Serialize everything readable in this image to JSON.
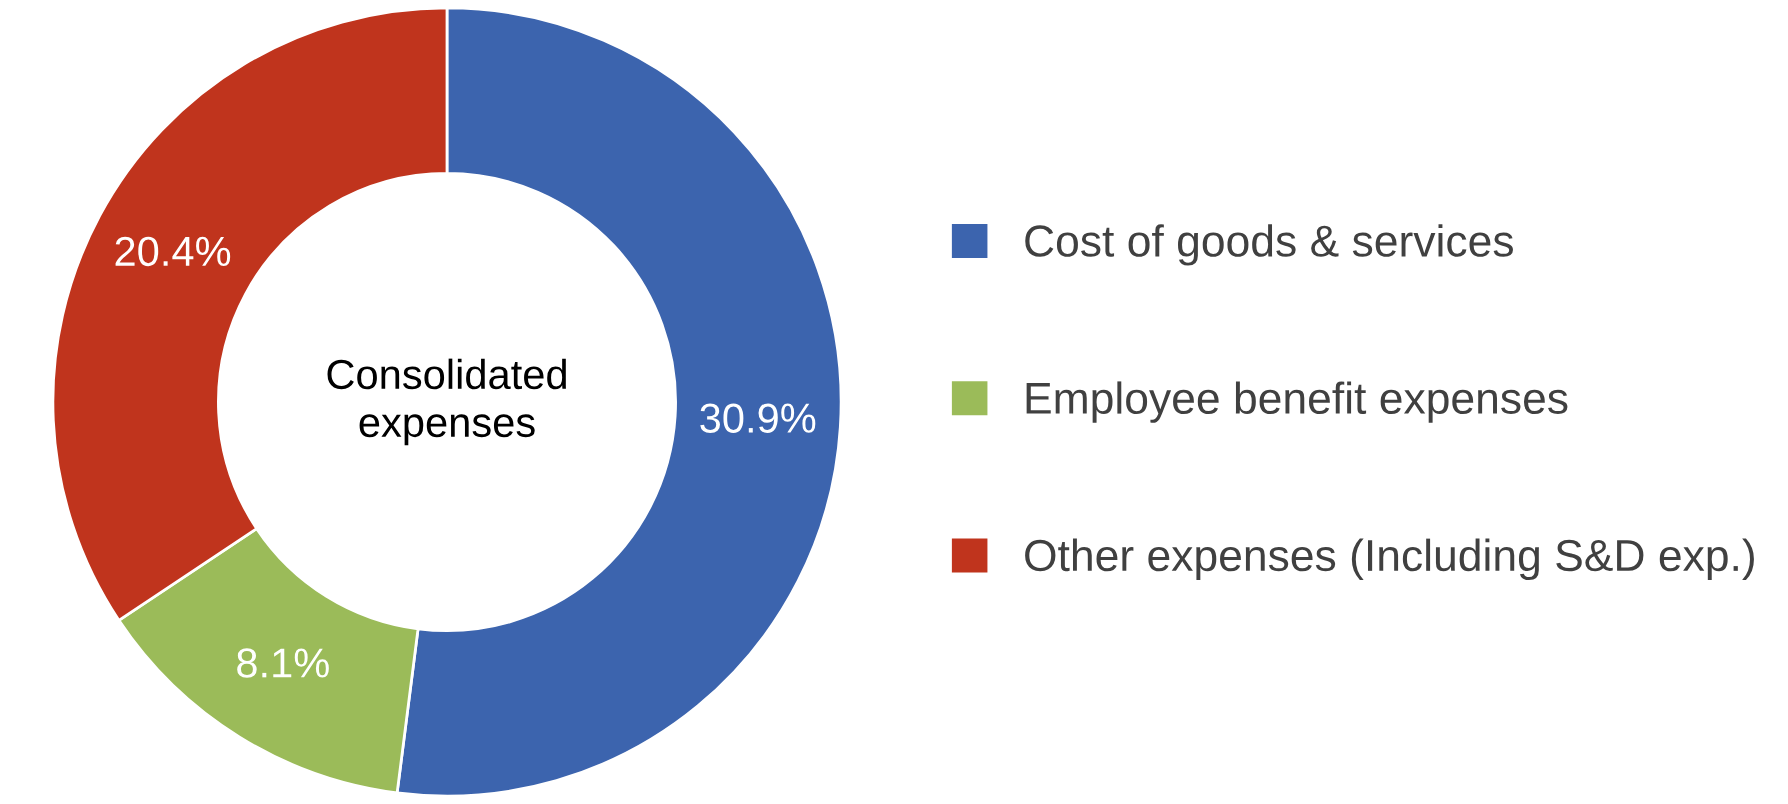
{
  "chart_data": {
    "type": "donut",
    "categories": [
      "Cost of goods & services",
      "Employee benefit expenses",
      "Other expenses (Including S&D exp.)"
    ],
    "values": [
      30.9,
      8.1,
      20.4
    ],
    "value_labels": [
      "30.9%",
      "8.1%",
      "20.4%"
    ],
    "colors": [
      "#3c64ae",
      "#9bbb59",
      "#c0341d"
    ],
    "annotations": [
      "Consolidated\nexpenses"
    ],
    "legend": "right"
  }
}
